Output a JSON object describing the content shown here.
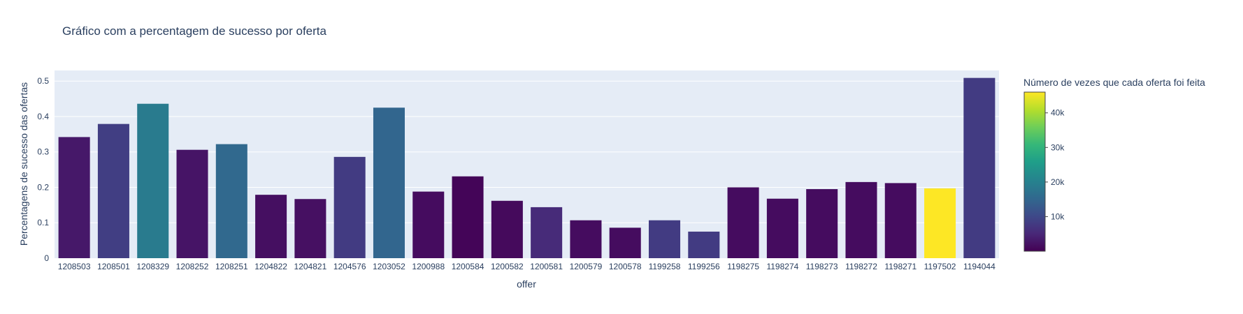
{
  "chart_data": {
    "type": "bar",
    "title": "Gráfico com a percentagem de sucesso por oferta",
    "xlabel": "offer",
    "ylabel": "Percentagens de sucesso das ofertas",
    "ylim": [
      0,
      0.53
    ],
    "yticks": [
      0,
      0.1,
      0.2,
      0.3,
      0.4,
      0.5
    ],
    "ytick_labels": [
      "0",
      "0.1",
      "0.2",
      "0.3",
      "0.4",
      "0.5"
    ],
    "grid": true,
    "categories": [
      "1208503",
      "1208501",
      "1208329",
      "1208252",
      "1208251",
      "1204822",
      "1204821",
      "1204576",
      "1203052",
      "1200988",
      "1200584",
      "1200582",
      "1200581",
      "1200579",
      "1200578",
      "1199258",
      "1199256",
      "1198275",
      "1198274",
      "1198273",
      "1198272",
      "1198271",
      "1197502",
      "1194044"
    ],
    "values": [
      0.342,
      0.379,
      0.436,
      0.306,
      0.322,
      0.179,
      0.167,
      0.286,
      0.425,
      0.188,
      0.231,
      0.162,
      0.144,
      0.107,
      0.086,
      0.107,
      0.075,
      0.2,
      0.168,
      0.195,
      0.215,
      0.212,
      0.197,
      0.509
    ],
    "color_values": [
      3000,
      8500,
      19000,
      2500,
      15500,
      1800,
      2000,
      8000,
      15000,
      1500,
      500,
      1200,
      5500,
      1500,
      1500,
      8000,
      8000,
      1500,
      1500,
      1500,
      1500,
      1500,
      46000,
      8000
    ],
    "colorbar": {
      "title": "Número de vezes que cada oferta foi feita",
      "range": [
        0,
        46000
      ],
      "ticks": [
        10000,
        20000,
        30000,
        40000
      ],
      "tick_labels": [
        "10k",
        "20k",
        "30k",
        "40k"
      ],
      "colorscale": "viridis"
    }
  }
}
